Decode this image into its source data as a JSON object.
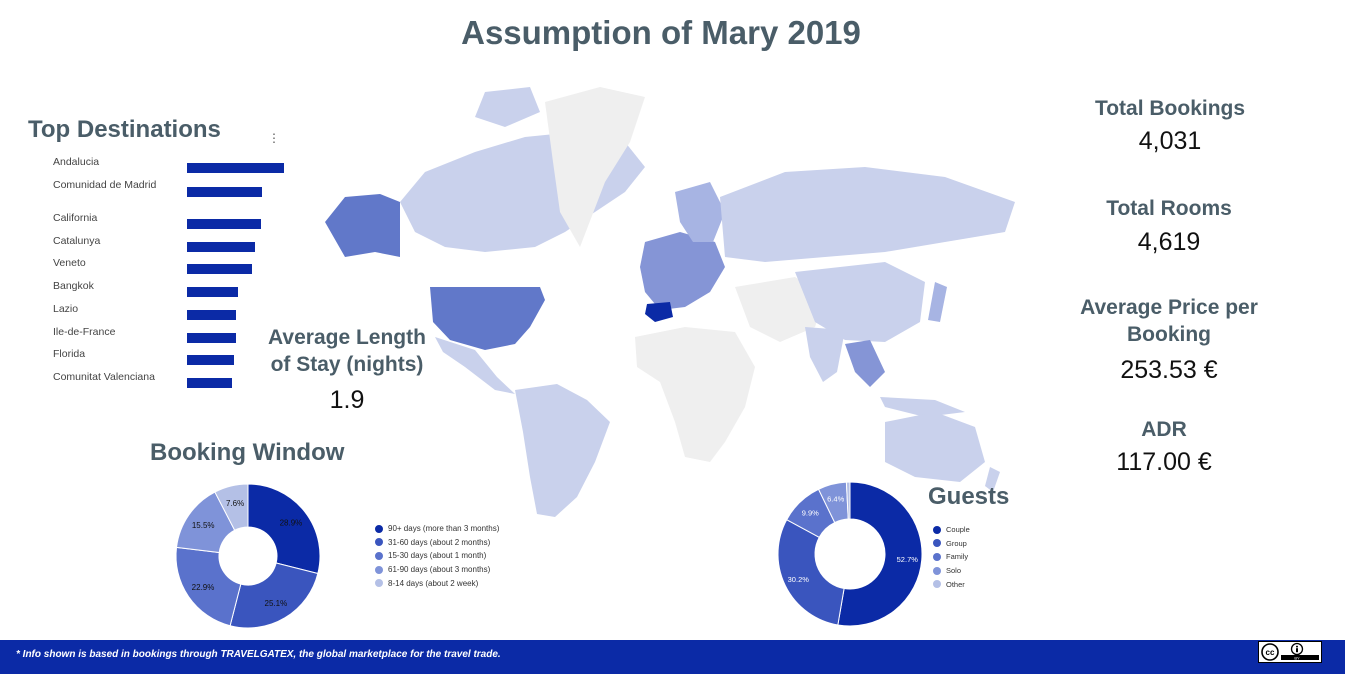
{
  "title": "Assumption of Mary 2019",
  "top_destinations": {
    "title": "Top Destinations",
    "menu_icon": "more-vert-icon"
  },
  "avg_stay": {
    "title": "Average Length of Stay (nights)",
    "value": "1.9"
  },
  "booking_window": {
    "title": "Booking Window"
  },
  "guests": {
    "title": "Guests"
  },
  "kpis": {
    "total_bookings": {
      "title": "Total Bookings",
      "value": "4,031"
    },
    "total_rooms": {
      "title": "Total Rooms",
      "value": "4,619"
    },
    "avg_price": {
      "title": "Average Price per Booking",
      "value": "253.53 €"
    },
    "adr": {
      "title": "ADR",
      "value": "117.00 €"
    }
  },
  "footer": {
    "text": "* Info shown is based in bookings through TRAVELGATEX, the global marketplace for the travel trade.",
    "license_icon": "cc-by-icon"
  },
  "colors": {
    "primary": "#0b2aa6",
    "title": "#4a5d68",
    "pie": [
      "#0b2aa6",
      "#3a55be",
      "#5a72cc",
      "#7f93d9",
      "#b4c0e6"
    ]
  },
  "chart_data": [
    {
      "type": "bar",
      "orientation": "horizontal",
      "title": "Top Destinations",
      "categories": [
        "Andalucia",
        "Comunidad de Madrid",
        "California",
        "Catalunya",
        "Veneto",
        "Bangkok",
        "Lazio",
        "Ile-de-France",
        "Florida",
        "Comunitat Valenciana"
      ],
      "values": [
        97,
        75,
        74,
        68,
        65,
        51,
        49,
        49,
        47,
        45
      ],
      "xlim": [
        0,
        100
      ],
      "grid": false
    },
    {
      "type": "pie",
      "donut": true,
      "title": "Booking Window",
      "labels": [
        "90+ days (more than 3 months)",
        "31-60 days (about 2 months)",
        "15-30 days (about 1 month)",
        "61-90 days (about 3 months)",
        "8-14 days (about 2 week)"
      ],
      "values": [
        28.9,
        25.1,
        22.9,
        15.5,
        7.6
      ],
      "value_labels": [
        "28.9%",
        "25.1%",
        "22.9%",
        "15.5%",
        "7.6%"
      ],
      "legend": "right"
    },
    {
      "type": "pie",
      "donut": true,
      "title": "Guests",
      "labels": [
        "Couple",
        "Group",
        "Family",
        "Solo",
        "Other"
      ],
      "values": [
        52.7,
        30.2,
        9.9,
        6.4,
        0.8
      ],
      "value_labels": [
        "52.7%",
        "30.2%",
        "9.9%",
        "6.4%",
        ""
      ],
      "legend": "right"
    }
  ]
}
